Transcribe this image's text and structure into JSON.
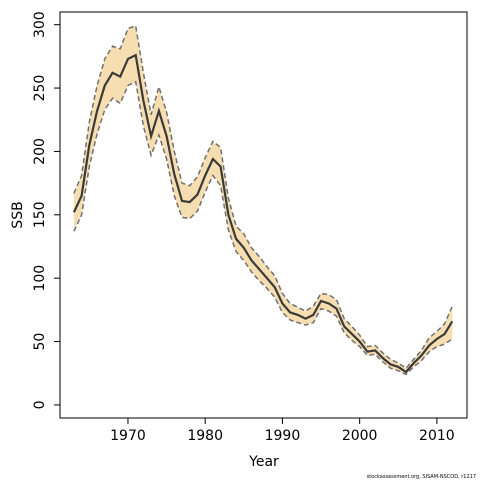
{
  "chart_data": {
    "type": "line",
    "xlabel": "Year",
    "ylabel": "SSB",
    "source": "stockassessment.org, SISAM-NSCOD, r1217",
    "x": [
      1963,
      1964,
      1965,
      1966,
      1967,
      1968,
      1969,
      1970,
      1971,
      1972,
      1973,
      1974,
      1975,
      1976,
      1977,
      1978,
      1979,
      1980,
      1981,
      1982,
      1983,
      1984,
      1985,
      1986,
      1987,
      1988,
      1989,
      1990,
      1991,
      1992,
      1993,
      1994,
      1995,
      1996,
      1997,
      1998,
      1999,
      2000,
      2001,
      2002,
      2003,
      2004,
      2005,
      2006,
      2007,
      2008,
      2009,
      2010,
      2011,
      2012
    ],
    "values": [
      152,
      165,
      205,
      232,
      252,
      262,
      259,
      273,
      276,
      240,
      212,
      232,
      212,
      182,
      161,
      160,
      166,
      181,
      194,
      188,
      150,
      131,
      124,
      114,
      107,
      100,
      93,
      80,
      73,
      71,
      68,
      71,
      82,
      80,
      76,
      62,
      56,
      50,
      42,
      43,
      37,
      32,
      30,
      26,
      33,
      39,
      47,
      52,
      56,
      66
    ],
    "lower": [
      137,
      150,
      188,
      214,
      233,
      242,
      238,
      252,
      255,
      220,
      197,
      213,
      194,
      165,
      148,
      147,
      153,
      168,
      181,
      173,
      138,
      121,
      114,
      105,
      98,
      92,
      85,
      73,
      67,
      65,
      63,
      65,
      76,
      74,
      70,
      57,
      51,
      46,
      39,
      40,
      34,
      29,
      27,
      24,
      30,
      35,
      42,
      46,
      48,
      52
    ],
    "upper": [
      167,
      181,
      223,
      252,
      273,
      283,
      281,
      297,
      299,
      262,
      229,
      251,
      231,
      200,
      175,
      173,
      180,
      195,
      208,
      203,
      163,
      141,
      135,
      124,
      117,
      109,
      102,
      88,
      80,
      77,
      74,
      78,
      88,
      87,
      83,
      68,
      62,
      55,
      46,
      47,
      41,
      36,
      33,
      29,
      36,
      43,
      53,
      58,
      64,
      78
    ],
    "color": "#3a3a3a",
    "band_color": "#f7deb0",
    "bound_color": "#707070",
    "xlim": [
      1961.2,
      2013.9
    ],
    "ylim": [
      -10.3,
      310
    ],
    "xticks": [
      1970,
      1980,
      1990,
      2000,
      2010
    ],
    "yticks": [
      0,
      50,
      100,
      150,
      200,
      250,
      300
    ]
  }
}
